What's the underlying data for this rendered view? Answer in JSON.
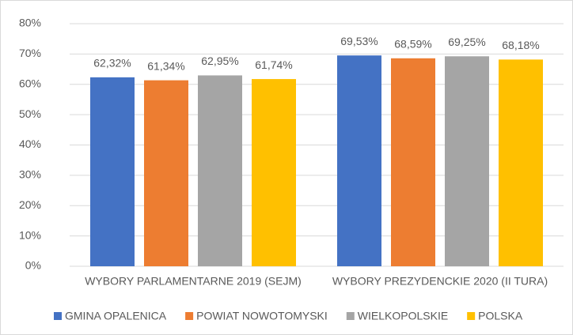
{
  "chart_data": {
    "type": "bar",
    "categories": [
      "WYBORY PARLAMENTARNE 2019 (SEJM)",
      "WYBORY PREZYDENCKIE 2020 (II TURA)"
    ],
    "series": [
      {
        "name": "GMINA OPALENICA",
        "color": "#4472c4",
        "values": [
          62.32,
          69.53
        ],
        "value_labels": [
          "62,32%",
          "69,53%"
        ]
      },
      {
        "name": "POWIAT NOWOTOMYSKI",
        "color": "#ed7d31",
        "values": [
          61.34,
          68.59
        ],
        "value_labels": [
          "61,34%",
          "68,59%"
        ]
      },
      {
        "name": "WIELKOPOLSKIE",
        "color": "#a5a5a5",
        "values": [
          62.95,
          69.25
        ],
        "value_labels": [
          "62,95%",
          "69,25%"
        ]
      },
      {
        "name": "POLSKA",
        "color": "#ffc000",
        "values": [
          61.74,
          68.18
        ],
        "value_labels": [
          "61,74%",
          "68,18%"
        ]
      }
    ],
    "ylim": [
      0,
      80
    ],
    "yticks": [
      {
        "value": 0,
        "label": "0%"
      },
      {
        "value": 10,
        "label": "10%"
      },
      {
        "value": 20,
        "label": "20%"
      },
      {
        "value": 30,
        "label": "30%"
      },
      {
        "value": 40,
        "label": "40%"
      },
      {
        "value": 50,
        "label": "50%"
      },
      {
        "value": 60,
        "label": "60%"
      },
      {
        "value": 70,
        "label": "70%"
      },
      {
        "value": 80,
        "label": "80%"
      }
    ],
    "grid": true,
    "legend": "bottom"
  }
}
